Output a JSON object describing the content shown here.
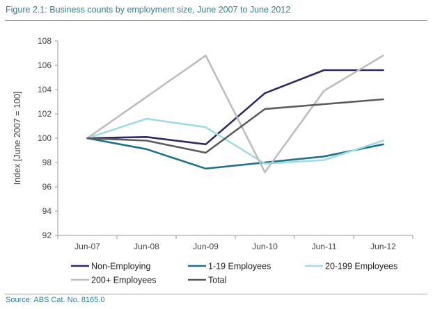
{
  "figure": {
    "title": "Figure 2.1: Business counts by employment size, June 2007 to June 2012",
    "source": "Source: ABS Cat. No. 8165.0"
  },
  "chart_data": {
    "type": "line",
    "title": "Figure 2.1: Business counts by employment size, June 2007 to June 2012",
    "xlabel": "",
    "ylabel": "Index [June 2007 = 100]",
    "categories": [
      "Jun-07",
      "Jun-08",
      "Jun-09",
      "Jun-10",
      "Jun-11",
      "Jun-12"
    ],
    "ylim": [
      92,
      108
    ],
    "yticks": [
      92,
      94,
      96,
      98,
      100,
      102,
      104,
      106,
      108
    ],
    "grid": false,
    "legend_position": "bottom",
    "series": [
      {
        "name": "Non-Employing",
        "color": "#2e2a5e",
        "values": [
          100,
          100.1,
          99.5,
          103.7,
          105.6,
          105.6
        ]
      },
      {
        "name": "1-19 Employees",
        "color": "#1f7187",
        "values": [
          100,
          99.1,
          97.5,
          98.0,
          98.5,
          99.5
        ]
      },
      {
        "name": "20-199 Employees",
        "color": "#9fdbe2",
        "values": [
          100,
          101.6,
          100.9,
          97.9,
          98.2,
          99.8
        ]
      },
      {
        "name": "200+ Employees",
        "color": "#bdbdbd",
        "values": [
          100,
          103.4,
          106.8,
          97.2,
          103.9,
          106.8
        ]
      },
      {
        "name": "Total",
        "color": "#5a5a5a",
        "values": [
          100,
          99.8,
          98.8,
          102.4,
          102.8,
          103.2
        ]
      }
    ]
  }
}
